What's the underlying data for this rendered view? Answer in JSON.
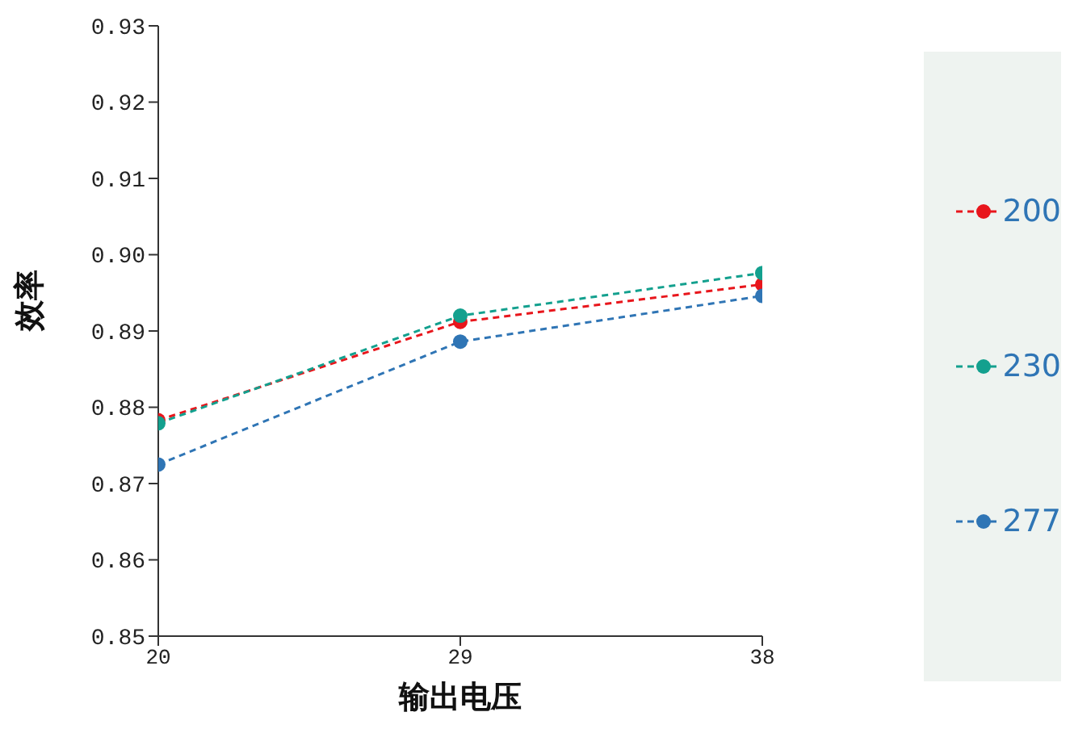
{
  "chart_data": {
    "type": "line",
    "xlabel": "输出电压",
    "ylabel": "效率",
    "x": [
      20,
      29,
      38
    ],
    "series": [
      {
        "name": "200",
        "color": "#e8161c",
        "values": [
          0.8783,
          0.8912,
          0.8961
        ]
      },
      {
        "name": "230",
        "color": "#13a08e",
        "values": [
          0.8779,
          0.892,
          0.8976
        ]
      },
      {
        "name": "277",
        "color": "#2f75b5",
        "values": [
          0.8725,
          0.8886,
          0.8946
        ]
      }
    ],
    "xlim": [
      20,
      38
    ],
    "xticks": [
      20,
      29,
      38
    ],
    "ylim": [
      0.85,
      0.93
    ],
    "yticks": [
      0.85,
      0.86,
      0.87,
      0.88,
      0.89,
      {
        "value": 0.9,
        "label": "0.90"
      },
      0.91,
      0.92,
      0.93
    ],
    "grid": false,
    "legend": "right",
    "marker": "circle",
    "line_style": "dashed"
  }
}
